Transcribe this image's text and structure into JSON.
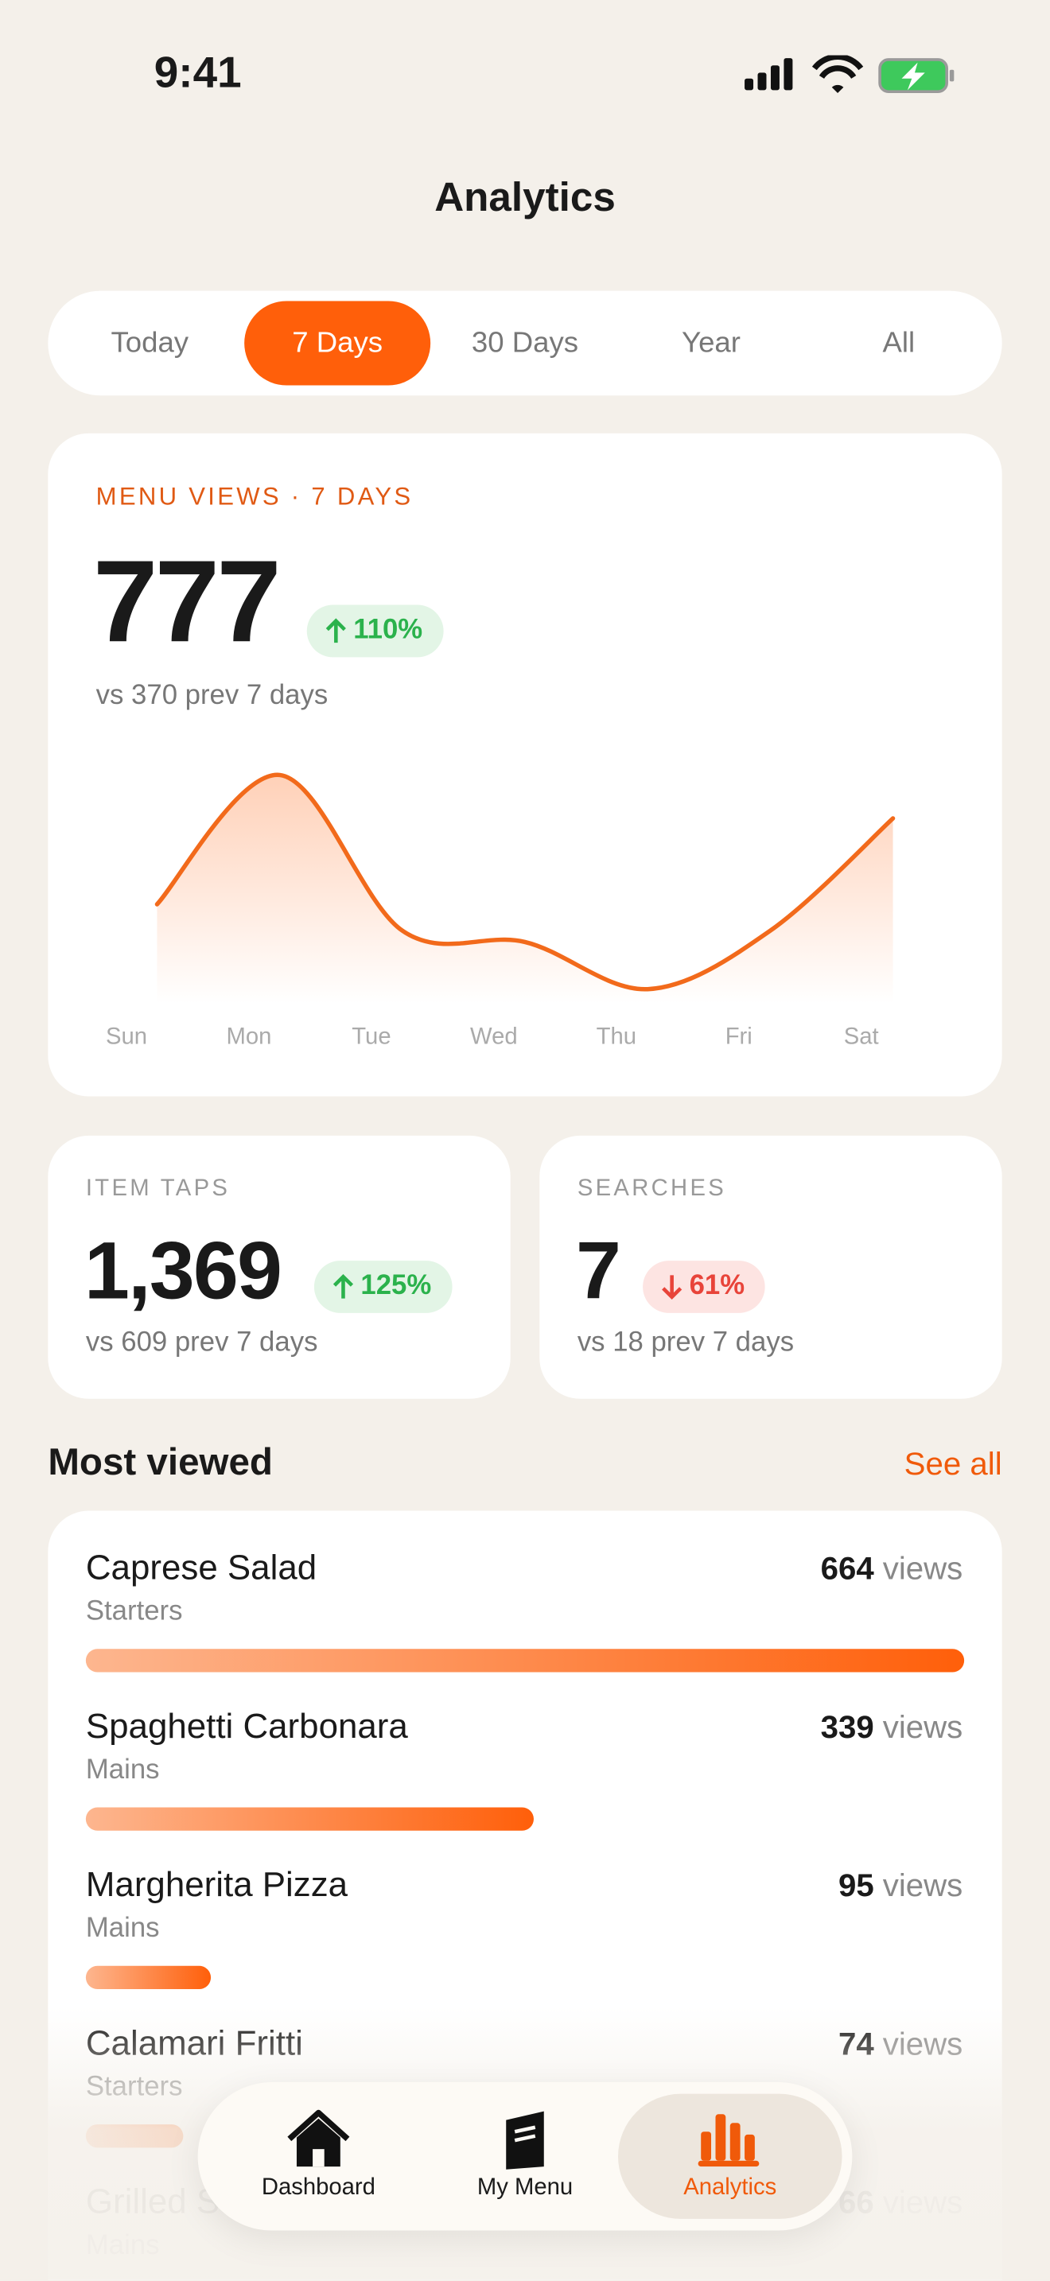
{
  "status_bar": {
    "time": "9:41"
  },
  "header": {
    "title": "Analytics"
  },
  "tabs": [
    "Today",
    "7 Days",
    "30 Days",
    "Year",
    "All"
  ],
  "chart_data": {
    "type": "line",
    "title": "MENU VIEWS · 7 DAYS",
    "total": "777",
    "change": "110%",
    "comparison": "vs 370 prev 7 days",
    "categories": [
      "Sun",
      "Mon",
      "Tue",
      "Wed",
      "Thu",
      "Fri",
      "Sat"
    ],
    "series": [
      {
        "name": "Menu views",
        "color": "#f26a1b",
        "values": [
          105,
          242,
          77,
          65,
          15,
          77,
          196
        ]
      }
    ]
  },
  "stats": [
    {
      "label": "ITEM TAPS",
      "value": "1,369",
      "change": "125%",
      "comparison": "vs 609 prev 7 days"
    },
    {
      "label": "SEARCHES",
      "value": "7",
      "change": "61%",
      "comparison": "vs 18 prev 7 days"
    }
  ],
  "most_viewed": {
    "title": "Most viewed",
    "see_all": "See all",
    "unit": "views",
    "items": [
      {
        "name": "Caprese Salad",
        "category": "Starters",
        "views": 664
      },
      {
        "name": "Spaghetti Carbonara",
        "category": "Mains",
        "views": 339
      },
      {
        "name": "Margherita Pizza",
        "category": "Mains",
        "views": 95
      },
      {
        "name": "Calamari Fritti",
        "category": "Starters",
        "views": 74
      },
      {
        "name": "Grilled Salmon",
        "category": "Mains",
        "views": 66
      }
    ]
  },
  "nav": [
    "Dashboard",
    "My Menu",
    "Analytics"
  ]
}
